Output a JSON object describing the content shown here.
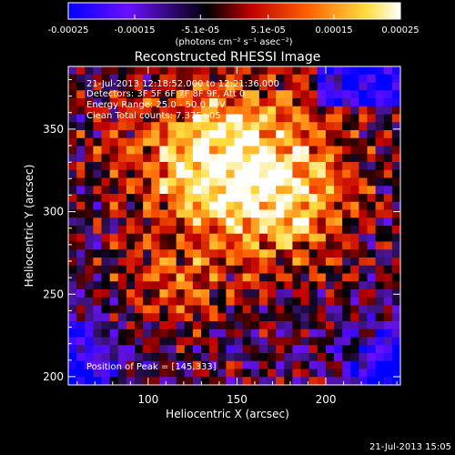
{
  "chart_data": {
    "type": "heatmap",
    "title": "Reconstructed RHESSI Image",
    "xlabel": "Heliocentric X (arcsec)",
    "ylabel": "Heliocentric Y (arcsec)",
    "xlim": [
      55,
      242
    ],
    "ylim": [
      195,
      388
    ],
    "x_ticks": [
      100,
      150,
      200
    ],
    "y_ticks": [
      200,
      250,
      300,
      350
    ],
    "colorbar": {
      "label": "(photons cm⁻² s⁻¹ asec⁻²)",
      "range": [
        -0.00025,
        0.00025
      ],
      "ticks": [
        -0.00025,
        -0.00015,
        -5.1e-05,
        5.1e-05,
        0.00015,
        0.00025
      ],
      "tick_labels": [
        "-0.00025",
        "-0.00015",
        "-5.1e-05",
        "5.1e-05",
        "0.00015",
        "0.00025"
      ],
      "colors": [
        "#0000ff",
        "#7a00ff",
        "#000000",
        "#c00000",
        "#ff7a00",
        "#ffff80",
        "#ffffff"
      ]
    },
    "peak": [
      145,
      333
    ],
    "info_lines": [
      "21-Jul-2013 12:18:52.000 to 12:21:36.000",
      "Detectors: 3F 5F 6F 7F 8F 9F, Att 0",
      "Energy Range: 25.0 - 50.0 keV",
      "Clean    Total counts: 7.37E+05"
    ],
    "peak_label": "Position of Peak = [145,333]",
    "timestamp": "21-Jul-2013 15:05"
  }
}
